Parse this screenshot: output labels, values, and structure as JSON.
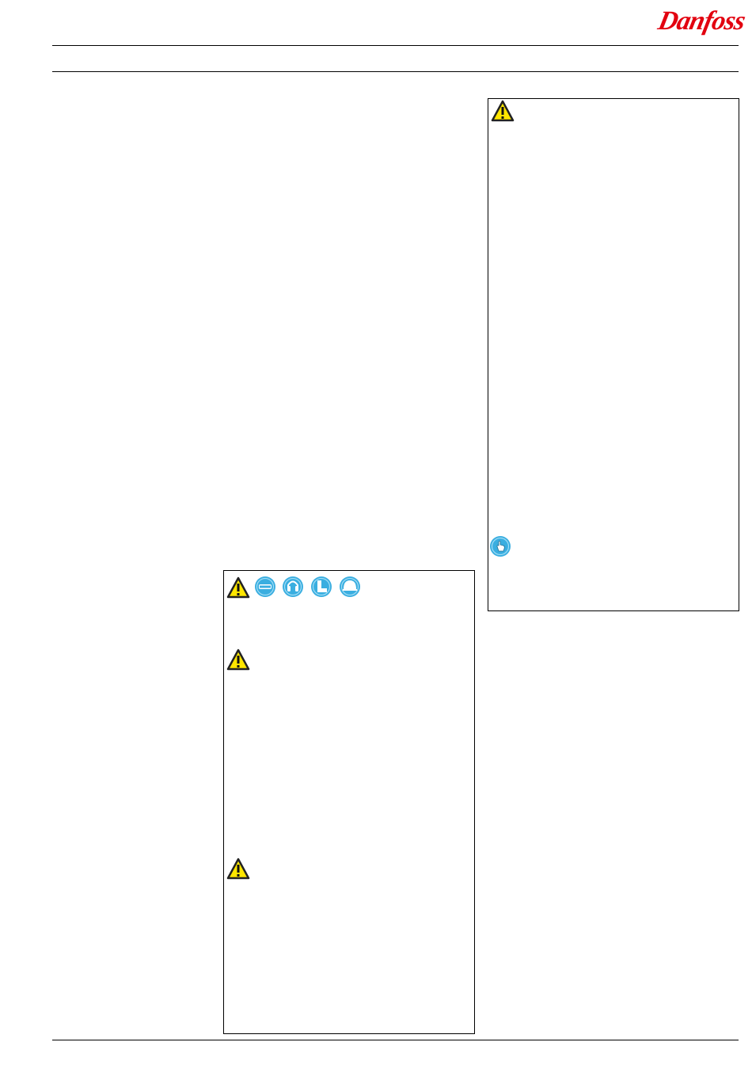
{
  "header": {
    "brand": "Danfoss",
    "brand_color": "#e2000f"
  },
  "icons": {
    "warning": "warning-triangle-icon",
    "ppe": [
      "safety-goggles-icon",
      "ear-protection-icon",
      "safety-boots-icon",
      "safety-helmet-icon"
    ],
    "note": "hand-pointer-icon"
  },
  "colors": {
    "warning_yellow": "#ffe600",
    "ppe_blue": "#3aaee0"
  }
}
